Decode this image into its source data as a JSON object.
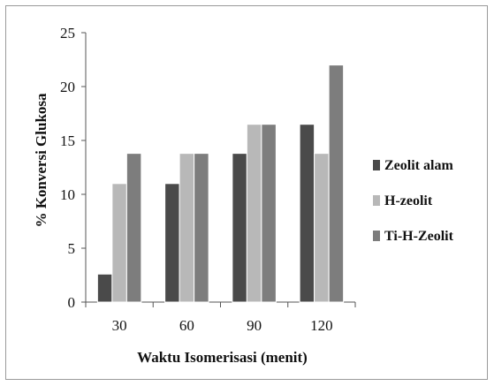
{
  "chart_data": {
    "type": "bar",
    "title": "",
    "xlabel": "Waktu Isomerisasi (menit)",
    "ylabel": "% Konversi Glukosa",
    "categories": [
      "30",
      "60",
      "90",
      "120"
    ],
    "ylim": [
      0,
      25
    ],
    "yticks": [
      0,
      5,
      10,
      15,
      20,
      25
    ],
    "grid": false,
    "legend_position": "right",
    "series": [
      {
        "name": "Zeolit alam",
        "color": "#4a4a4a",
        "values": [
          2.6,
          11.0,
          13.8,
          16.5
        ]
      },
      {
        "name": "H-zeolit",
        "color": "#b8b8b8",
        "values": [
          11.0,
          13.8,
          16.5,
          13.8
        ]
      },
      {
        "name": "Ti-H-Zeolit",
        "color": "#7d7d7d",
        "values": [
          13.8,
          13.8,
          16.5,
          22.0
        ]
      }
    ]
  }
}
